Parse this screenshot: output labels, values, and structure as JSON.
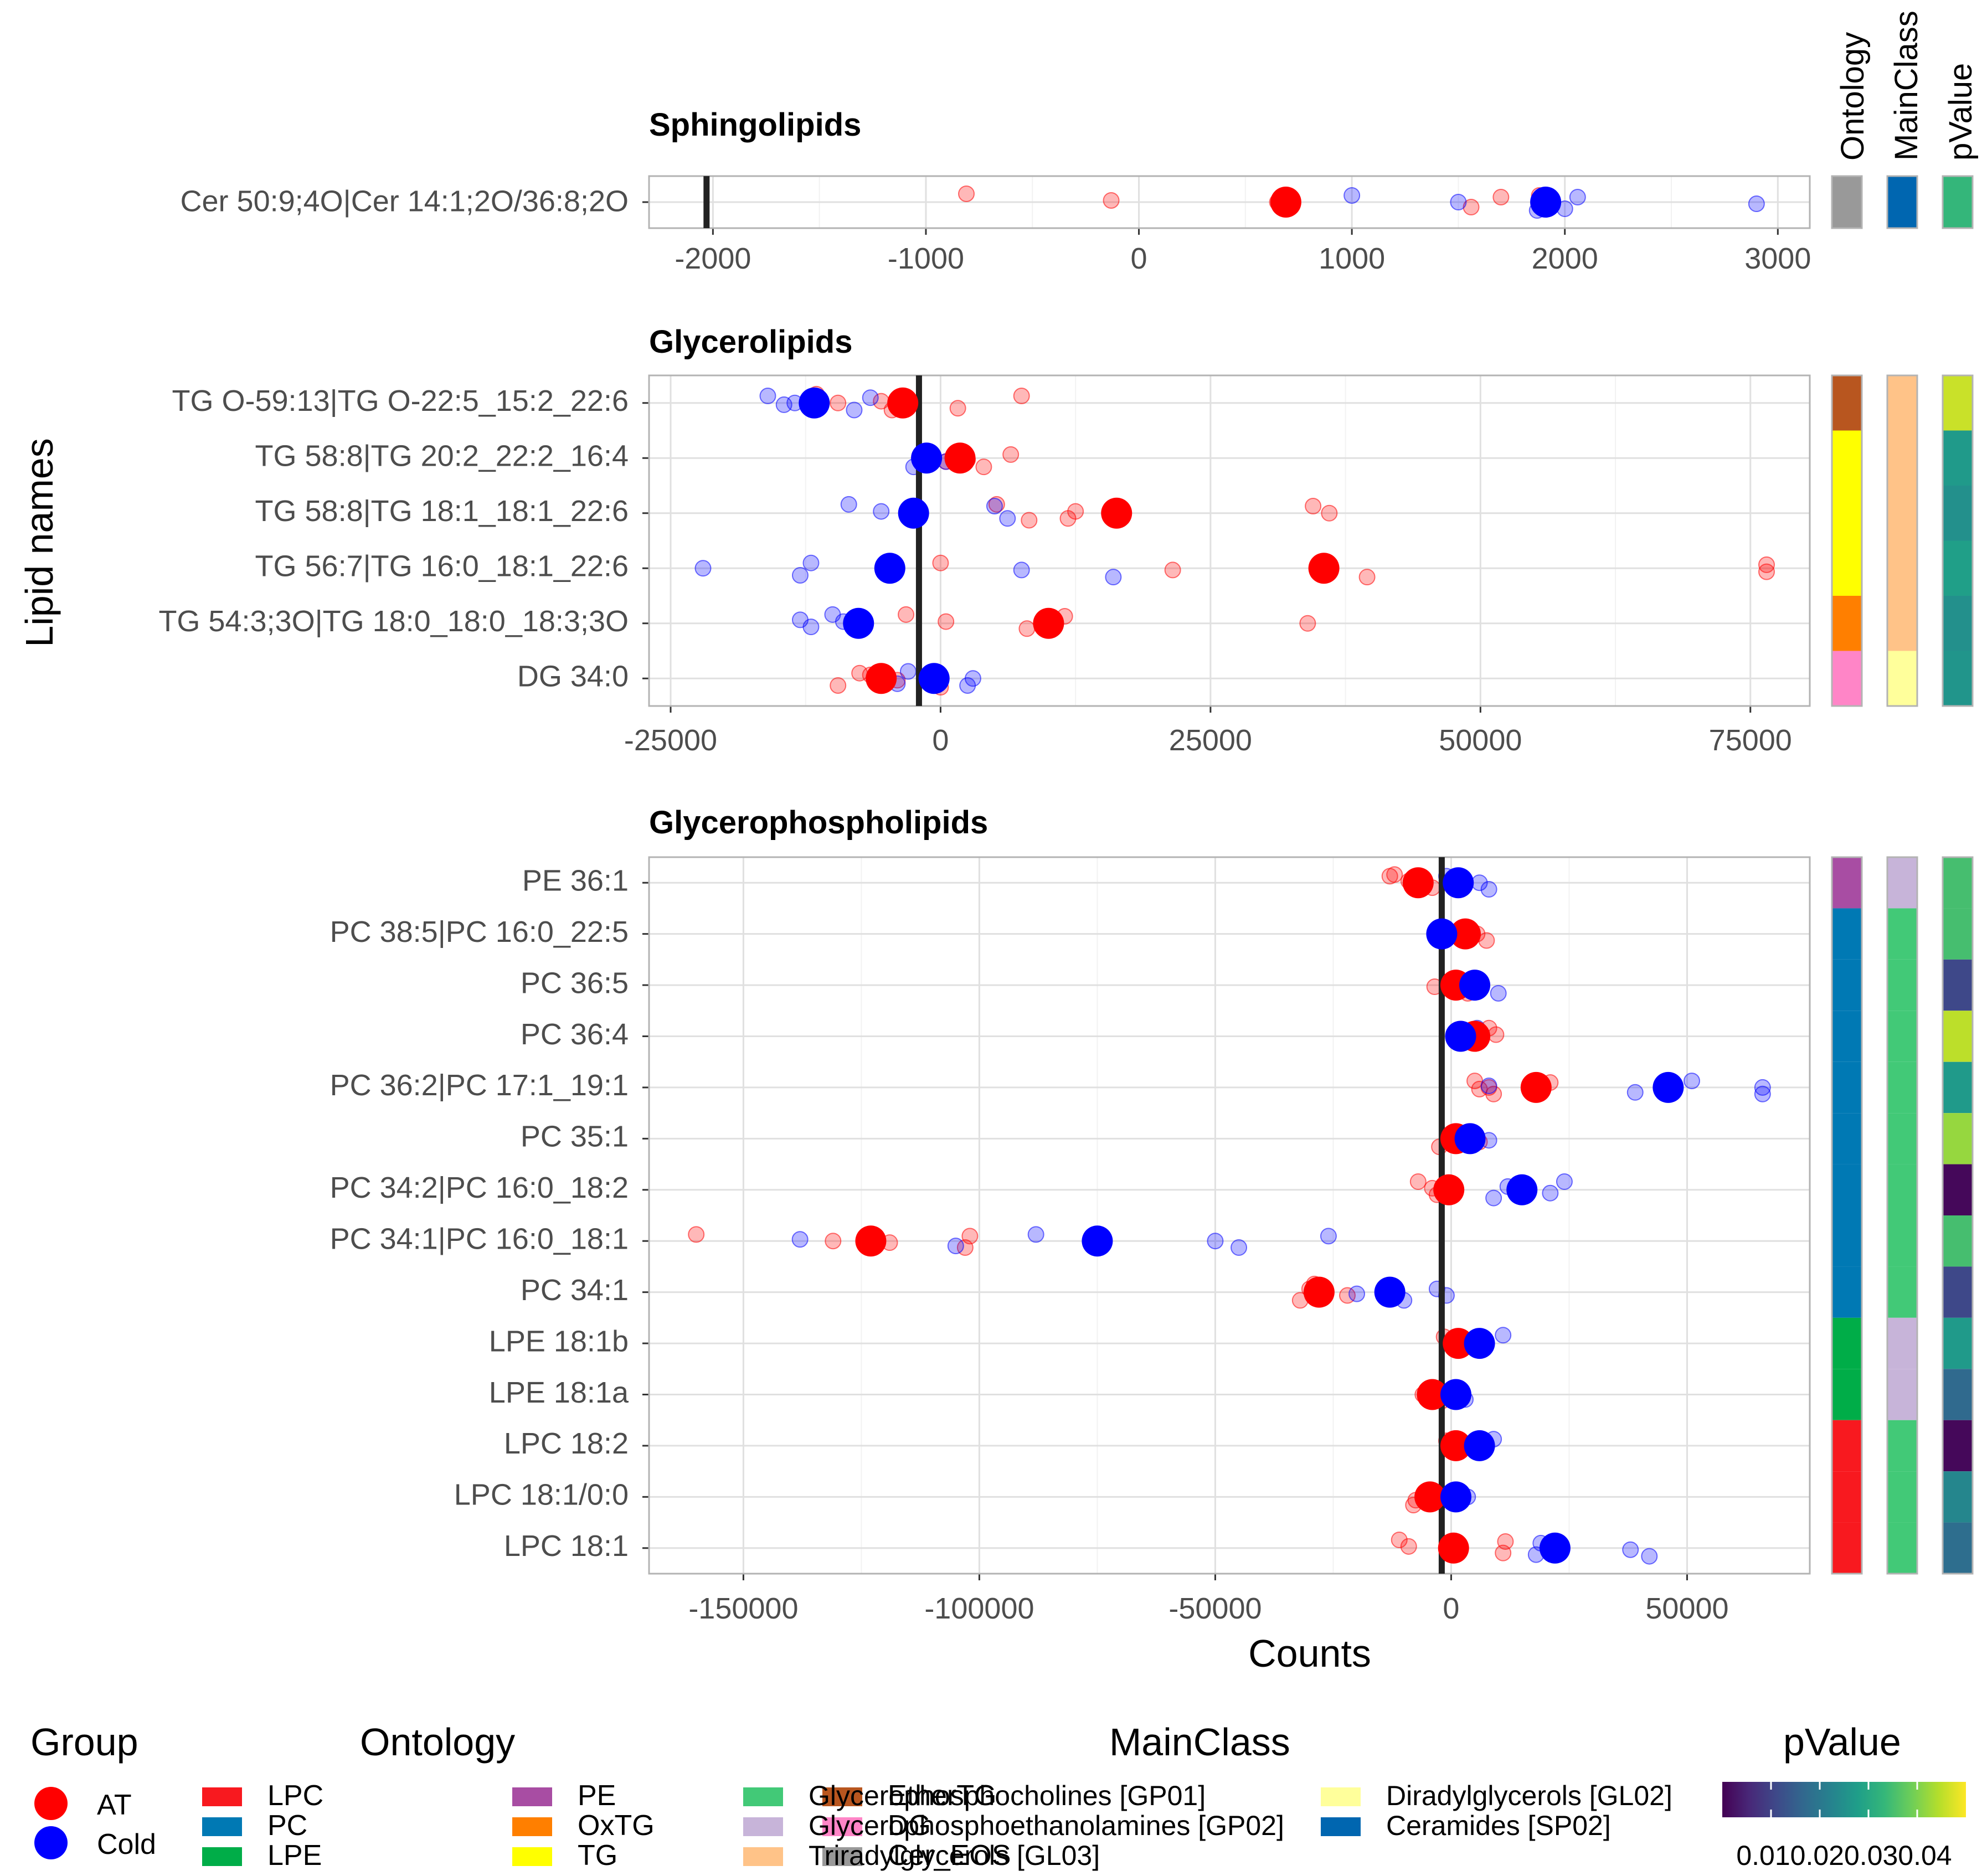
{
  "figure": {
    "ylabel": "Lipid names",
    "xlabel": "Counts",
    "strip_labels": [
      "Ontology",
      "MainClass",
      "pValue"
    ]
  },
  "colors": {
    "AT": "#ff0000",
    "Cold": "#0000ff",
    "ontology": {
      "LPC": "#f8191f",
      "PC": "#0079b4",
      "LPE": "#00ad48",
      "PE": "#a84da3",
      "OxTG": "#ff7f00",
      "TG": "#ffff00",
      "EtherTG": "#b8561f",
      "DG": "#ff85c7",
      "Cer_EOS": "#999999"
    },
    "mainclass": {
      "Glycerophosphocholines [GP01]": "#42c977",
      "Glycerophosphoethanolamines [GP02]": "#c7b4d9",
      "Triradylglycerols [GL03]": "#ffc388",
      "Diradylglycerols [GL02]": "#ffff9b",
      "Ceramides [SP02]": "#0066b0"
    },
    "viridis": [
      "#440154",
      "#482878",
      "#3e4989",
      "#31688e",
      "#26828e",
      "#1f9e89",
      "#35b779",
      "#6ece58",
      "#b5de2b",
      "#fde725"
    ]
  },
  "chart_data": [
    {
      "type": "scatter",
      "title": "Sphingolipids",
      "xlim": [
        -2300,
        3150
      ],
      "xticks": [
        -2000,
        -1000,
        0,
        1000,
        2000,
        3000
      ],
      "tick_labels": [
        "-2000",
        "-1000",
        "0",
        "1000",
        "2000",
        "3000"
      ],
      "vline": -2030,
      "categories": [
        "Cer 50:9;4O|Cer 14:1;2O/36:8;2O"
      ],
      "annotations": [
        {
          "Ontology": "Cer_EOS",
          "MainClass": "Ceramides [SP02]",
          "pValue": 0.033
        }
      ],
      "series": [
        {
          "name": "AT",
          "means": [
            690
          ],
          "points": [
            [
              -810,
              0
            ],
            [
              -130,
              0
            ],
            [
              1560,
              0
            ],
            [
              1880,
              0
            ],
            [
              650,
              0
            ],
            [
              1910,
              0
            ],
            [
              1700,
              0
            ]
          ]
        },
        {
          "name": "Cold",
          "means": [
            1910
          ],
          "points": [
            [
              1000,
              0
            ],
            [
              1500,
              0
            ],
            [
              2000,
              0
            ],
            [
              2060,
              0
            ],
            [
              2900,
              0
            ],
            [
              1870,
              0
            ]
          ]
        }
      ]
    },
    {
      "type": "scatter",
      "title": "Glycerolipids",
      "xlim": [
        -27000,
        80500
      ],
      "xticks": [
        -25000,
        0,
        25000,
        50000,
        75000
      ],
      "tick_labels": [
        "-25000",
        "0",
        "25000",
        "50000",
        "75000"
      ],
      "vline": -2000,
      "categories": [
        "TG O-59:13|TG O-22:5_15:2_22:6",
        "TG 58:8|TG 20:2_22:2_16:4",
        "TG 58:8|TG 18:1_18:1_22:6",
        "TG 56:7|TG 16:0_18:1_22:6",
        "TG 54:3;3O|TG 18:0_18:0_18:3;3O",
        "DG 34:0"
      ],
      "annotations": [
        {
          "Ontology": "EtherTG",
          "MainClass": "Triradylglycerols [GL03]",
          "pValue": 0.046
        },
        {
          "Ontology": "TG",
          "MainClass": "Triradylglycerols [GL03]",
          "pValue": 0.027
        },
        {
          "Ontology": "TG",
          "MainClass": "Triradylglycerols [GL03]",
          "pValue": 0.025
        },
        {
          "Ontology": "TG",
          "MainClass": "Triradylglycerols [GL03]",
          "pValue": 0.028
        },
        {
          "Ontology": "OxTG",
          "MainClass": "Triradylglycerols [GL03]",
          "pValue": 0.025
        },
        {
          "Ontology": "DG",
          "MainClass": "Diradylglycerols [GL02]",
          "pValue": 0.026
        }
      ],
      "series": [
        {
          "name": "AT",
          "means": [
            -3500,
            1800,
            16300,
            35500,
            10000,
            -5500
          ],
          "points": [
            [
              -11500,
              0
            ],
            [
              -5500,
              0
            ],
            [
              1600,
              0
            ],
            [
              7500,
              0
            ],
            [
              -9500,
              0
            ],
            [
              -4500,
              0
            ],
            [
              -1000,
              1
            ],
            [
              2500,
              1
            ],
            [
              4000,
              1
            ],
            [
              6500,
              1
            ],
            [
              500,
              1
            ],
            [
              5200,
              2
            ],
            [
              12500,
              2
            ],
            [
              11800,
              2
            ],
            [
              34500,
              2
            ],
            [
              36000,
              2
            ],
            [
              8200,
              2
            ],
            [
              0,
              3
            ],
            [
              21500,
              3
            ],
            [
              39500,
              3
            ],
            [
              76500,
              3
            ],
            [
              76500,
              3
            ],
            [
              -3200,
              4
            ],
            [
              500,
              4
            ],
            [
              8000,
              4
            ],
            [
              11500,
              4
            ],
            [
              34000,
              4
            ],
            [
              -9500,
              5
            ],
            [
              -7500,
              5
            ],
            [
              -4000,
              5
            ],
            [
              0,
              5
            ],
            [
              -6500,
              5
            ]
          ]
        },
        {
          "name": "Cold",
          "means": [
            -11700,
            -1300,
            -2500,
            -4700,
            -7600,
            -600
          ],
          "points": [
            [
              -16000,
              0
            ],
            [
              -13500,
              0
            ],
            [
              -8000,
              0
            ],
            [
              -6500,
              0
            ],
            [
              -14500,
              0
            ],
            [
              -2500,
              1
            ],
            [
              -1000,
              1
            ],
            [
              500,
              1
            ],
            [
              -8500,
              2
            ],
            [
              -5500,
              2
            ],
            [
              6200,
              2
            ],
            [
              5000,
              2
            ],
            [
              -22000,
              3
            ],
            [
              -13000,
              3
            ],
            [
              -12000,
              3
            ],
            [
              7500,
              3
            ],
            [
              16000,
              3
            ],
            [
              -13000,
              4
            ],
            [
              -12000,
              4
            ],
            [
              -10000,
              4
            ],
            [
              -9000,
              4
            ],
            [
              -4000,
              5
            ],
            [
              -3000,
              5
            ],
            [
              3000,
              5
            ],
            [
              2500,
              5
            ]
          ]
        }
      ]
    },
    {
      "type": "scatter",
      "title": "Glycerophospholipids",
      "xlim": [
        -170000,
        76000
      ],
      "xticks": [
        -150000,
        -100000,
        -50000,
        0,
        50000
      ],
      "tick_labels": [
        "-150000",
        "-100000",
        "-50000",
        "0",
        "50000"
      ],
      "vline": -2000,
      "categories": [
        "PE 36:1",
        "PC 38:5|PC 16:0_22:5",
        "PC 36:5",
        "PC 36:4",
        "PC 36:2|PC 17:1_19:1",
        "PC 35:1",
        "PC 34:2|PC 16:0_18:2",
        "PC 34:1|PC 16:0_18:1",
        "PC 34:1",
        "LPE 18:1b",
        "LPE 18:1a",
        "LPC 18:2",
        "LPC 18:1/0:0",
        "LPC 18:1"
      ],
      "annotations": [
        {
          "Ontology": "PE",
          "MainClass": "Glycerophosphoethanolamines [GP02]",
          "pValue": 0.035
        },
        {
          "Ontology": "PC",
          "MainClass": "Glycerophosphocholines [GP01]",
          "pValue": 0.035
        },
        {
          "Ontology": "PC",
          "MainClass": "Glycerophosphocholines [GP01]",
          "pValue": 0.011
        },
        {
          "Ontology": "PC",
          "MainClass": "Glycerophosphocholines [GP01]",
          "pValue": 0.045
        },
        {
          "Ontology": "PC",
          "MainClass": "Glycerophosphocholines [GP01]",
          "pValue": 0.027
        },
        {
          "Ontology": "PC",
          "MainClass": "Glycerophosphocholines [GP01]",
          "pValue": 0.042
        },
        {
          "Ontology": "PC",
          "MainClass": "Glycerophosphocholines [GP01]",
          "pValue": 0.001
        },
        {
          "Ontology": "PC",
          "MainClass": "Glycerophosphocholines [GP01]",
          "pValue": 0.035
        },
        {
          "Ontology": "PC",
          "MainClass": "Glycerophosphocholines [GP01]",
          "pValue": 0.011
        },
        {
          "Ontology": "LPE",
          "MainClass": "Glycerophosphoethanolamines [GP02]",
          "pValue": 0.027
        },
        {
          "Ontology": "LPE",
          "MainClass": "Glycerophosphoethanolamines [GP02]",
          "pValue": 0.017
        },
        {
          "Ontology": "LPC",
          "MainClass": "Glycerophosphocholines [GP01]",
          "pValue": 0.001
        },
        {
          "Ontology": "LPC",
          "MainClass": "Glycerophosphocholines [GP01]",
          "pValue": 0.023
        },
        {
          "Ontology": "LPC",
          "MainClass": "Glycerophosphocholines [GP01]",
          "pValue": 0.018
        }
      ],
      "series": [
        {
          "name": "AT",
          "means": [
            -7000,
            3000,
            1000,
            5000,
            18000,
            1000,
            -500,
            -123000,
            -28000,
            1500,
            -4000,
            1000,
            -4500,
            500
          ],
          "points": [
            [
              -12000,
              0
            ],
            [
              -9000,
              0
            ],
            [
              -4000,
              0
            ],
            [
              -13000,
              0
            ],
            [
              5500,
              1
            ],
            [
              7500,
              1
            ],
            [
              4000,
              1
            ],
            [
              -3500,
              2
            ],
            [
              3500,
              2
            ],
            [
              6000,
              2
            ],
            [
              6000,
              3
            ],
            [
              8000,
              3
            ],
            [
              9500,
              3
            ],
            [
              3000,
              3
            ],
            [
              5000,
              4
            ],
            [
              8000,
              4
            ],
            [
              9000,
              4
            ],
            [
              21000,
              4
            ],
            [
              6000,
              4
            ],
            [
              -2500,
              5
            ],
            [
              3500,
              5
            ],
            [
              6000,
              5
            ],
            [
              -7000,
              6
            ],
            [
              -4000,
              6
            ],
            [
              -3000,
              6
            ],
            [
              -160000,
              7
            ],
            [
              -131000,
              7
            ],
            [
              -103000,
              7
            ],
            [
              -102000,
              7
            ],
            [
              -119000,
              7
            ],
            [
              -32000,
              8
            ],
            [
              -30000,
              8
            ],
            [
              -22000,
              8
            ],
            [
              -29000,
              8
            ],
            [
              3000,
              9
            ],
            [
              5000,
              9
            ],
            [
              -1500,
              9
            ],
            [
              -6000,
              10
            ],
            [
              -2000,
              10
            ],
            [
              -1000,
              11
            ],
            [
              4000,
              11
            ],
            [
              -8000,
              12
            ],
            [
              -5000,
              12
            ],
            [
              -7500,
              12
            ],
            [
              -11000,
              13
            ],
            [
              -9000,
              13
            ],
            [
              11000,
              13
            ],
            [
              11500,
              13
            ],
            [
              1500,
              13
            ]
          ]
        },
        {
          "name": "Cold",
          "means": [
            1500,
            -2000,
            5000,
            2000,
            46000,
            4000,
            15000,
            -75000,
            -13000,
            6000,
            1000,
            6000,
            1000,
            22000
          ],
          "points": [
            [
              -1000,
              0
            ],
            [
              6000,
              0
            ],
            [
              8000,
              0
            ],
            [
              -3000,
              1
            ],
            [
              0,
              1
            ],
            [
              10000,
              2
            ],
            [
              3500,
              2
            ],
            [
              3000,
              3
            ],
            [
              5500,
              3
            ],
            [
              8000,
              4
            ],
            [
              39000,
              4
            ],
            [
              51000,
              4
            ],
            [
              66000,
              4
            ],
            [
              66000,
              4
            ],
            [
              3000,
              5
            ],
            [
              8000,
              5
            ],
            [
              9000,
              6
            ],
            [
              12000,
              6
            ],
            [
              21000,
              6
            ],
            [
              24000,
              6
            ],
            [
              -138000,
              7
            ],
            [
              -105000,
              7
            ],
            [
              -88000,
              7
            ],
            [
              -50000,
              7
            ],
            [
              -45000,
              7
            ],
            [
              -26000,
              7
            ],
            [
              -20000,
              8
            ],
            [
              -10000,
              8
            ],
            [
              -3000,
              8
            ],
            [
              -1000,
              8
            ],
            [
              11000,
              9
            ],
            [
              0,
              10
            ],
            [
              3000,
              10
            ],
            [
              9000,
              11
            ],
            [
              3500,
              12
            ],
            [
              18000,
              13
            ],
            [
              19000,
              13
            ],
            [
              38000,
              13
            ],
            [
              42000,
              13
            ]
          ]
        }
      ]
    }
  ],
  "legend": {
    "group": {
      "title": "Group",
      "items": [
        "AT",
        "Cold"
      ]
    },
    "ontology": {
      "title": "Ontology",
      "items": [
        "LPC",
        "PC",
        "LPE",
        "PE",
        "OxTG",
        "TG",
        "EtherTG",
        "DG",
        "Cer_EOS"
      ]
    },
    "mainclass": {
      "title": "MainClass",
      "items": [
        "Glycerophosphocholines [GP01]",
        "Glycerophosphoethanolamines [GP02]",
        "Triradylglycerols [GL03]",
        "Diradylglycerols [GL02]",
        "Ceramides [SP02]"
      ]
    },
    "pvalue": {
      "title": "pValue",
      "min": 0.0,
      "max": 0.05,
      "tick_values": [
        0.01,
        0.02,
        0.03,
        0.04
      ],
      "tick_text": "0.010.020.030.04"
    }
  }
}
